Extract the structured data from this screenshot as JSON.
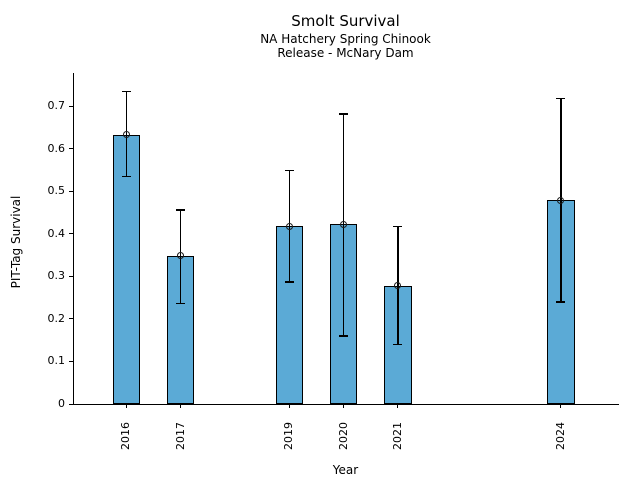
{
  "title": "Smolt Survival",
  "subtitle_line1": "NA Hatchery Spring Chinook",
  "subtitle_line2": "Release - McNary Dam",
  "chart_data": {
    "type": "bar",
    "title": "Smolt Survival",
    "subtitle": [
      "NA Hatchery Spring Chinook",
      "Release - McNary Dam"
    ],
    "xlabel": "Year",
    "ylabel": "PIT-Tag Survival",
    "categories": [
      "2016",
      "2017",
      "2019",
      "2020",
      "2021",
      "2024"
    ],
    "values": [
      0.633,
      0.348,
      0.418,
      0.423,
      0.278,
      0.479
    ],
    "error_low": [
      0.534,
      0.237,
      0.287,
      0.16,
      0.14,
      0.24
    ],
    "error_high": [
      0.734,
      0.456,
      0.549,
      0.682,
      0.418,
      0.719
    ],
    "marker": "open-circle",
    "bar_color": "#5BAAD6",
    "bar_edge_color": "#000000",
    "error_color": "#000000",
    "y_tick_labels": [
      "0",
      "0.1",
      "0.2",
      "0.3",
      "0.4",
      "0.5",
      "0.6",
      "0.7"
    ],
    "y_tick_values": [
      0,
      0.1,
      0.2,
      0.3,
      0.4,
      0.5,
      0.6,
      0.7
    ],
    "xlim": [
      2015.02,
      2025.05
    ],
    "ylim": [
      0,
      0.778
    ],
    "grid": false,
    "legend": null,
    "bar_width_years": 0.5
  }
}
